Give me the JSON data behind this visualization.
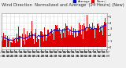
{
  "title": "Wind Direction  Normalized and Average  (24 Hours) (New)",
  "bg_color": "#f0f0f0",
  "plot_bg": "#ffffff",
  "grid_color": "#aaaaaa",
  "bar_color": "#dd0000",
  "line_color": "#0000cc",
  "legend_labels": [
    "Average",
    "Norm"
  ],
  "legend_colors": [
    "#0000cc",
    "#dd0000"
  ],
  "y_ticks": [
    0,
    1,
    2,
    3,
    4,
    5
  ],
  "ylim": [
    -0.3,
    5.5
  ],
  "n_points": 200,
  "x_tick_count": 25,
  "title_fontsize": 3.8,
  "tick_fontsize": 2.5,
  "legend_fontsize": 2.8,
  "seed": 99
}
